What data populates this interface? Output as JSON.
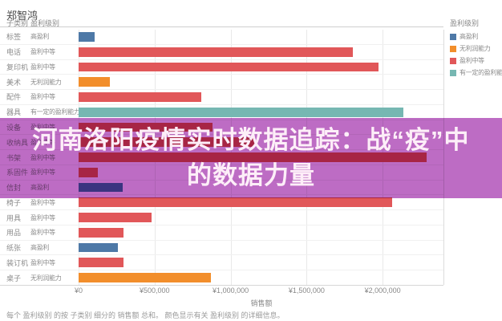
{
  "window": {
    "title": "郑智鸿"
  },
  "table": {
    "col1_header": "子类别",
    "col2_header": "盈利级别"
  },
  "banner": {
    "line1": "河南洛阳疫情实时数据追踪：战“疫”中",
    "line2": "的数据力量",
    "color": "#bd6cc4",
    "text_color": "#fdeef8"
  },
  "legend": {
    "title": "盈利级别",
    "items": [
      {
        "label": "高盈利",
        "color": "#4e79a7"
      },
      {
        "label": "无利润能力",
        "color": "#f28e2b"
      },
      {
        "label": "盈利中等",
        "color": "#e15759"
      },
      {
        "label": "有一定的盈利能力",
        "color": "#76b7b2"
      }
    ]
  },
  "caption": "每个 盈利级别 的按 子类别 细分的 销售额 总和。 颜色显示有关 盈利级别 的详细信息。",
  "chart_data": {
    "type": "bar",
    "orientation": "horizontal",
    "title": "郑智鸿",
    "xlabel": "销售额",
    "ylabel": "子类别 / 盈利级别",
    "xlim": [
      0,
      2400000
    ],
    "grid": true,
    "legend_position": "right",
    "x_ticks": [
      {
        "label": "¥0",
        "value": 0
      },
      {
        "label": "¥500,000",
        "value": 500000
      },
      {
        "label": "¥1,000,000",
        "value": 1000000
      },
      {
        "label": "¥1,500,000",
        "value": 1500000
      },
      {
        "label": "¥2,000,000",
        "value": 2000000
      }
    ],
    "level_colors": {
      "高盈利": "#4e79a7",
      "无利润能力": "#f28e2b",
      "盈利中等": "#e15759",
      "有一定的盈利能力": "#76b7b2"
    },
    "rows": [
      {
        "category": "标签",
        "level": "高盈利",
        "sales": 103000
      },
      {
        "category": "电话",
        "level": "盈利中等",
        "sales": 1805000
      },
      {
        "category": "复印机",
        "level": "盈利中等",
        "sales": 1974000
      },
      {
        "category": "美术",
        "level": "无利润能力",
        "sales": 206000
      },
      {
        "category": "配件",
        "level": "盈利中等",
        "sales": 807000
      },
      {
        "category": "器具",
        "level": "有一定的盈利能力",
        "sales": 2137000
      },
      {
        "category": "设备",
        "level": "盈利中等",
        "sales": 881000
      },
      {
        "category": "收纳具",
        "level": "盈利中等",
        "sales": 1160000
      },
      {
        "category": "书架",
        "level": "盈利中等",
        "sales": 2290000
      },
      {
        "category": "系固件",
        "level": "盈利中等",
        "sales": 129000
      },
      {
        "category": "信封",
        "level": "高盈利",
        "sales": 288000
      },
      {
        "category": "椅子",
        "level": "盈利中等",
        "sales": 2063000
      },
      {
        "category": "用具",
        "level": "盈利中等",
        "sales": 478000
      },
      {
        "category": "用品",
        "level": "盈利中等",
        "sales": 293000
      },
      {
        "category": "纸张",
        "level": "高盈利",
        "sales": 261000
      },
      {
        "category": "装订机",
        "level": "盈利中等",
        "sales": 293000
      },
      {
        "category": "桌子",
        "level": "无利润能力",
        "sales": 868000
      }
    ]
  }
}
